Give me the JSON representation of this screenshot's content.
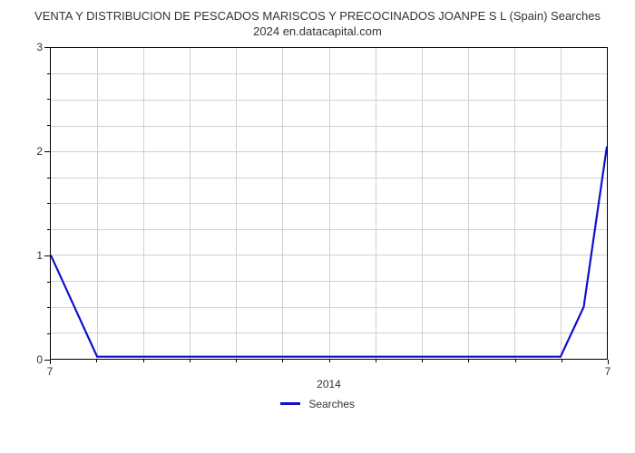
{
  "chart": {
    "type": "line",
    "title_line1": "VENTA Y DISTRIBUCION DE PESCADOS MARISCOS Y PRECOCINADOS JOANPE S L (Spain) Searches",
    "title_line2": "2024 en.datacapital.com",
    "title_fontsize": 13,
    "title_color": "#333333",
    "background_color": "#ffffff",
    "ylim": [
      0,
      3
    ],
    "yticks": [
      0,
      1,
      2,
      3
    ],
    "minor_yticks": [
      0.25,
      0.5,
      0.75,
      1.25,
      1.5,
      1.75,
      2.25,
      2.5,
      2.75
    ],
    "xlim": [
      0,
      12
    ],
    "x_tick_left_label": "7",
    "x_tick_right_label": "7",
    "x_center_label": "2014",
    "grid_color": "#d0d0d0",
    "border_color": "#000000",
    "minor_grid_xcount": 12,
    "series": {
      "name": "Searches",
      "color": "#1010cc",
      "line_width": 2.2,
      "points_x": [
        0,
        1,
        2,
        3,
        4,
        5,
        6,
        7,
        8,
        9,
        10,
        11,
        11.5,
        12
      ],
      "points_y": [
        1.0,
        0.02,
        0.02,
        0.02,
        0.02,
        0.02,
        0.02,
        0.02,
        0.02,
        0.02,
        0.02,
        0.02,
        0.5,
        2.05
      ]
    },
    "legend_label": "Searches",
    "tick_fontsize": 12,
    "tick_color": "#333333"
  }
}
